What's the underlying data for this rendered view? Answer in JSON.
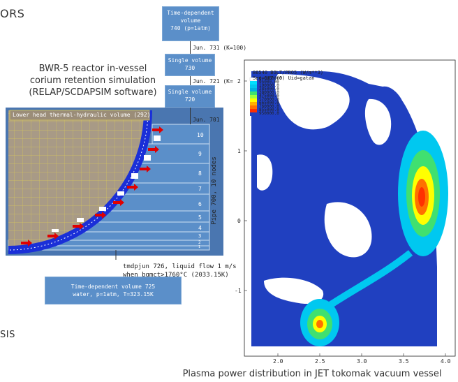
{
  "fragments": {
    "top_left": "ORS",
    "bottom_left": "SIS"
  },
  "bwr": {
    "caption_line1": "BWR-5 reactor in-vessel",
    "caption_line2": "corium retention simulation",
    "caption_line3": "(RELAP/SCDAPSIM software)",
    "lower_head_label": "Lower head thermal-hydraulic volume (292)",
    "pipe_label": "Pipe 700, 10 nodes",
    "nodes": [
      "10",
      "9",
      "8",
      "7",
      "6",
      "5",
      "4",
      "3",
      "2",
      "1"
    ],
    "volume_740_line1": "Time-dependent",
    "volume_740_line2": "volume",
    "volume_740_line3": "740 (p=1atm)",
    "jun_731": "Jun. 731 (K=100)",
    "volume_730_line1": "Single volume",
    "volume_730_line2": "730",
    "jun_721": "Jun. 721 (K=",
    "volume_720_line1": "Single volume",
    "volume_720_line2": "720",
    "jun_701": "Jun. 701",
    "tmdpjun_line1": "tmdpjun 726, liquid flow 1 m/s",
    "tmdpjun_line2": "when bgmct>1760°C (2033.15K)",
    "volume_725_line1": "Time-dependent volume 725",
    "volume_725_line2": "water, p=1atm, T=323.15K"
  },
  "plasma": {
    "header_line1": "86540 BOLT/PRO5 (W/m**3)",
    "header_line2": "Seq=187 (0) Uid=gatan",
    "legend": [
      "0.0000000",
      "95000.00",
      "190000.0",
      "285000.0",
      "380000.0",
      "475000.0",
      "570000.0",
      "665000.0",
      "760000.0",
      "855000.0",
      "950000.0"
    ],
    "legend_colors": [
      "#ffffff",
      "#00e0ff",
      "#00c8f0",
      "#00b0e0",
      "#40e070",
      "#a0ff40",
      "#ffff00",
      "#ffb000",
      "#ff7000",
      "#ff3000",
      "#2040c0"
    ],
    "x_ticks": [
      "2.0",
      "2.5",
      "3.0",
      "3.5",
      "4.0"
    ],
    "y_ticks": [
      "2",
      "1",
      "0",
      "-1"
    ],
    "caption": "Plasma power distribution in JET tokomak vacuum vessel"
  }
}
